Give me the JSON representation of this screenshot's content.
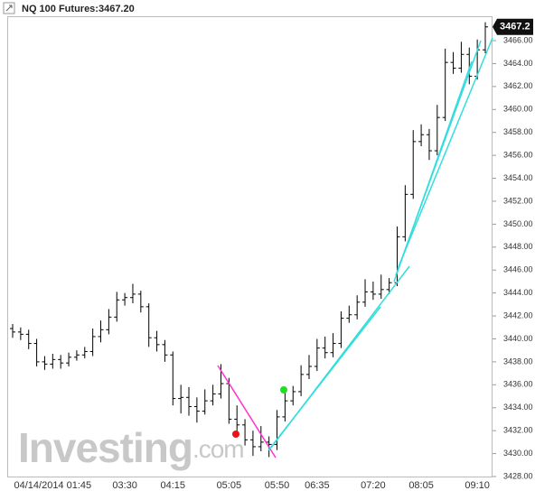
{
  "chart_data": {
    "type": "ohlc",
    "title": "NQ 100 Futures:3467.20",
    "last_price_label": "3467.2",
    "watermark": "Investing",
    "watermark_suffix": ".com",
    "categories": [
      null,
      null,
      null,
      null,
      null,
      "04/14/2014 01:45",
      null,
      null,
      null,
      null,
      null,
      null,
      null,
      null,
      "03:30",
      null,
      null,
      null,
      null,
      null,
      "04:15",
      null,
      null,
      null,
      null,
      null,
      null,
      "05:05",
      null,
      null,
      null,
      null,
      null,
      "05:50",
      null,
      null,
      null,
      null,
      "06:35",
      null,
      null,
      null,
      null,
      null,
      null,
      "07:20",
      null,
      null,
      null,
      null,
      null,
      "08:05",
      null,
      null,
      null,
      null,
      null,
      null,
      "09:10",
      null
    ],
    "open": [
      3440.9,
      3440.6,
      3440.4,
      3439.6,
      3438.0,
      3437.8,
      3438.2,
      3437.9,
      3438.4,
      3438.6,
      3438.9,
      3440.2,
      3440.8,
      3441.9,
      3443.4,
      3443.6,
      3443.9,
      3442.8,
      3440.1,
      3439.5,
      3438.6,
      3434.8,
      3434.9,
      3434.1,
      3433.7,
      3434.6,
      3435.2,
      3436.1,
      3433.0,
      3432.5,
      3431.2,
      3430.6,
      3431.0,
      3430.8,
      3433.2,
      3434.6,
      3435.4,
      3436.9,
      3437.6,
      3439.2,
      3438.8,
      3439.6,
      3441.8,
      3442.1,
      3443.2,
      3444.1,
      3443.9,
      3444.3,
      3444.9,
      3448.9,
      3452.6,
      3457.2,
      3457.8,
      3456.4,
      3459.3,
      3464.1,
      3463.6,
      3464.8,
      3462.9,
      3465.2
    ],
    "high": [
      3441.3,
      3441.0,
      3440.8,
      3440.0,
      3438.5,
      3438.7,
      3438.6,
      3438.8,
      3439.0,
      3439.3,
      3440.9,
      3441.6,
      3442.6,
      3444.1,
      3444.0,
      3444.8,
      3444.2,
      3443.1,
      3440.7,
      3439.9,
      3438.9,
      3436.0,
      3435.8,
      3434.9,
      3435.6,
      3436.0,
      3437.8,
      3436.6,
      3434.2,
      3433.0,
      3432.0,
      3432.4,
      3431.5,
      3433.8,
      3435.6,
      3435.9,
      3437.7,
      3438.6,
      3440.0,
      3440.2,
      3440.5,
      3442.4,
      3442.9,
      3443.8,
      3445.2,
      3445.0,
      3445.6,
      3445.3,
      3449.8,
      3453.4,
      3458.2,
      3458.7,
      3458.3,
      3460.4,
      3465.3,
      3465.0,
      3465.9,
      3465.4,
      3466.1,
      3467.6
    ],
    "low": [
      3440.1,
      3439.9,
      3439.1,
      3437.6,
      3437.3,
      3437.4,
      3437.4,
      3437.6,
      3438.1,
      3438.3,
      3438.5,
      3439.7,
      3440.4,
      3441.5,
      3442.9,
      3443.1,
      3442.3,
      3439.3,
      3438.9,
      3438.0,
      3434.2,
      3433.5,
      3433.3,
      3432.7,
      3433.4,
      3434.2,
      3434.8,
      3432.6,
      3431.9,
      3430.7,
      3429.8,
      3430.2,
      3429.7,
      3430.3,
      3432.8,
      3434.2,
      3435.0,
      3436.5,
      3437.2,
      3438.3,
      3438.4,
      3439.2,
      3441.4,
      3441.7,
      3442.8,
      3443.4,
      3443.5,
      3443.9,
      3444.6,
      3448.5,
      3452.2,
      3456.8,
      3455.6,
      3456.0,
      3459.0,
      3463.1,
      3463.2,
      3462.2,
      3462.6,
      3464.9
    ],
    "close": [
      3440.6,
      3440.4,
      3439.6,
      3438.0,
      3437.8,
      3438.2,
      3437.9,
      3438.4,
      3438.6,
      3438.9,
      3440.2,
      3440.8,
      3441.9,
      3443.4,
      3443.6,
      3443.9,
      3442.8,
      3440.1,
      3439.5,
      3438.6,
      3434.8,
      3434.9,
      3434.1,
      3433.7,
      3434.6,
      3435.2,
      3436.1,
      3433.0,
      3432.5,
      3431.2,
      3430.6,
      3431.0,
      3430.8,
      3433.2,
      3434.6,
      3435.4,
      3436.9,
      3437.6,
      3439.2,
      3438.8,
      3439.6,
      3441.8,
      3442.1,
      3443.2,
      3444.1,
      3443.9,
      3444.3,
      3444.9,
      3448.9,
      3452.6,
      3457.2,
      3457.8,
      3456.4,
      3459.3,
      3464.1,
      3463.6,
      3464.8,
      3462.9,
      3465.2,
      3467.2
    ],
    "color": "#000000",
    "ylim": [
      3428,
      3468
    ],
    "yticks": [
      {
        "value": 3428,
        "label": "3428.00"
      },
      {
        "value": 3430,
        "label": "3430.00"
      },
      {
        "value": 3432,
        "label": "3432.00"
      },
      {
        "value": 3434,
        "label": "3434.00"
      },
      {
        "value": 3436,
        "label": "3436.00"
      },
      {
        "value": 3438,
        "label": "3438.00"
      },
      {
        "value": 3440,
        "label": "3440.00"
      },
      {
        "value": 3442,
        "label": "3442.00"
      },
      {
        "value": 3444,
        "label": "3444.00"
      },
      {
        "value": 3446,
        "label": "3446.00"
      },
      {
        "value": 3448,
        "label": "3448.00"
      },
      {
        "value": 3450,
        "label": "3450.00"
      },
      {
        "value": 3452,
        "label": "3452.00"
      },
      {
        "value": 3454,
        "label": "3454.00"
      },
      {
        "value": 3456,
        "label": "3456.00"
      },
      {
        "value": 3458,
        "label": "3458.00"
      },
      {
        "value": 3460,
        "label": "3460.00"
      },
      {
        "value": 3462,
        "label": "3462.00"
      },
      {
        "value": 3464,
        "label": "3464.00"
      },
      {
        "value": 3466,
        "label": "3466.00"
      }
    ],
    "grid": false
  }
}
